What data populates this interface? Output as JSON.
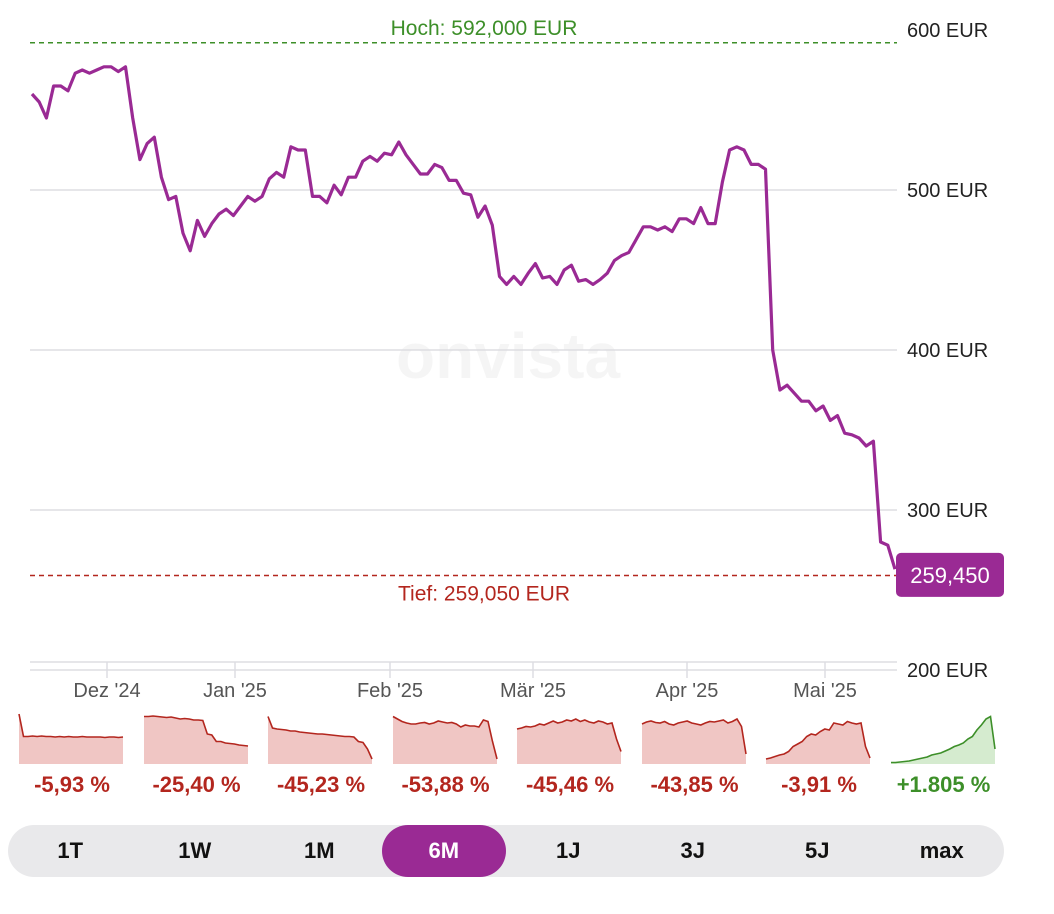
{
  "chart_data": {
    "type": "line",
    "currency": "EUR",
    "x_labels": [
      "Dez '24",
      "Jan '25",
      "Feb '25",
      "Mär '25",
      "Apr '25",
      "Mai '25"
    ],
    "y_ticks": [
      "600 EUR",
      "500 EUR",
      "400 EUR",
      "300 EUR",
      "200 EUR"
    ],
    "y_tick_values": [
      600,
      500,
      400,
      300,
      200
    ],
    "ylim": [
      200,
      600
    ],
    "high_label": "Hoch: 592,000 EUR",
    "high_value": 592,
    "low_label": "Tief: 259,050 EUR",
    "low_value": 259.05,
    "last_value_label": "259,450",
    "last_value": 259.45,
    "watermark": "onvista",
    "series": [
      {
        "name": "Kurs",
        "color": "#9a2a94",
        "values": [
          560,
          555,
          545,
          565,
          565,
          562,
          573,
          575,
          573,
          575,
          577,
          577,
          574,
          577,
          545,
          519,
          529,
          533,
          508,
          494,
          496,
          473,
          462,
          481,
          471,
          479,
          485,
          488,
          484,
          490,
          496,
          493,
          496,
          507,
          511,
          508,
          527,
          525,
          525,
          496,
          496,
          492,
          503,
          497,
          508,
          508,
          518,
          521,
          518,
          523,
          522,
          530,
          522,
          516,
          510,
          510,
          516,
          514,
          506,
          506,
          498,
          497,
          483,
          490,
          478,
          446,
          441,
          446,
          441,
          448,
          454,
          445,
          446,
          441,
          450,
          453,
          443,
          444,
          441,
          444,
          448,
          456,
          459,
          461,
          469,
          477,
          477,
          475,
          477,
          474,
          482,
          482,
          479,
          489,
          479,
          479,
          505,
          525,
          527,
          525,
          516,
          516,
          513,
          400,
          375,
          378,
          373,
          368,
          368,
          362,
          365,
          356,
          359,
          348,
          347,
          345,
          340,
          343,
          280,
          278,
          263
        ]
      }
    ],
    "performance": [
      {
        "period": "1T",
        "label": "-5,93 %",
        "sign": "neg",
        "spark": [
          1.0,
          0.55,
          0.55,
          0.56,
          0.55,
          0.56,
          0.55,
          0.55,
          0.54,
          0.55,
          0.54,
          0.55,
          0.54,
          0.54,
          0.55,
          0.54,
          0.54,
          0.54,
          0.54,
          0.53,
          0.54,
          0.54,
          0.53,
          0.54
        ]
      },
      {
        "period": "1W",
        "label": "-25,40 %",
        "sign": "neg",
        "spark": [
          0.95,
          0.95,
          0.96,
          0.95,
          0.94,
          0.93,
          0.94,
          0.92,
          0.9,
          0.91,
          0.9,
          0.88,
          0.88,
          0.87,
          0.6,
          0.58,
          0.45,
          0.45,
          0.42,
          0.41,
          0.4,
          0.38,
          0.37,
          0.36
        ]
      },
      {
        "period": "1M",
        "label": "-45,23 %",
        "sign": "neg",
        "spark": [
          0.95,
          0.72,
          0.7,
          0.69,
          0.68,
          0.66,
          0.66,
          0.64,
          0.63,
          0.62,
          0.61,
          0.6,
          0.6,
          0.59,
          0.58,
          0.57,
          0.56,
          0.55,
          0.55,
          0.54,
          0.45,
          0.43,
          0.3,
          0.1
        ]
      },
      {
        "period": "6M",
        "label": "-53,88 %",
        "sign": "neg",
        "spark": [
          0.95,
          0.9,
          0.85,
          0.82,
          0.8,
          0.8,
          0.82,
          0.83,
          0.8,
          0.82,
          0.86,
          0.84,
          0.82,
          0.83,
          0.8,
          0.74,
          0.78,
          0.76,
          0.76,
          0.74,
          0.88,
          0.85,
          0.45,
          0.1
        ]
      },
      {
        "period": "1J",
        "label": "-45,46 %",
        "sign": "neg",
        "spark": [
          0.7,
          0.72,
          0.75,
          0.74,
          0.76,
          0.8,
          0.78,
          0.82,
          0.86,
          0.82,
          0.84,
          0.88,
          0.86,
          0.9,
          0.85,
          0.88,
          0.84,
          0.82,
          0.86,
          0.84,
          0.8,
          0.82,
          0.5,
          0.25
        ]
      },
      {
        "period": "3J",
        "label": "-43,85 %",
        "sign": "neg",
        "spark": [
          0.8,
          0.84,
          0.86,
          0.83,
          0.82,
          0.85,
          0.8,
          0.78,
          0.82,
          0.84,
          0.86,
          0.82,
          0.8,
          0.78,
          0.82,
          0.85,
          0.84,
          0.86,
          0.88,
          0.82,
          0.85,
          0.9,
          0.75,
          0.2
        ]
      },
      {
        "period": "5J",
        "label": "-3,91 %",
        "sign": "neg",
        "spark": [
          0.1,
          0.12,
          0.15,
          0.18,
          0.2,
          0.25,
          0.35,
          0.4,
          0.45,
          0.55,
          0.6,
          0.58,
          0.65,
          0.7,
          0.68,
          0.82,
          0.8,
          0.78,
          0.85,
          0.82,
          0.8,
          0.82,
          0.35,
          0.12
        ]
      },
      {
        "period": "max",
        "label": "+1.805 %",
        "sign": "pos",
        "spark": [
          0.03,
          0.03,
          0.04,
          0.05,
          0.06,
          0.08,
          0.1,
          0.12,
          0.14,
          0.18,
          0.2,
          0.22,
          0.26,
          0.3,
          0.35,
          0.38,
          0.42,
          0.5,
          0.55,
          0.68,
          0.78,
          0.9,
          0.95,
          0.3
        ]
      }
    ]
  },
  "range_tabs": [
    {
      "label": "1T",
      "active": false
    },
    {
      "label": "1W",
      "active": false
    },
    {
      "label": "1M",
      "active": false
    },
    {
      "label": "6M",
      "active": true
    },
    {
      "label": "1J",
      "active": false
    },
    {
      "label": "3J",
      "active": false
    },
    {
      "label": "5J",
      "active": false
    },
    {
      "label": "max",
      "active": false
    }
  ],
  "colors": {
    "line": "#9a2a94",
    "high": "#3d8f29",
    "low": "#b3261e",
    "grid": "#dddde2",
    "neg_fill": "#f0c6c4",
    "pos_fill": "#d5ebcf"
  }
}
